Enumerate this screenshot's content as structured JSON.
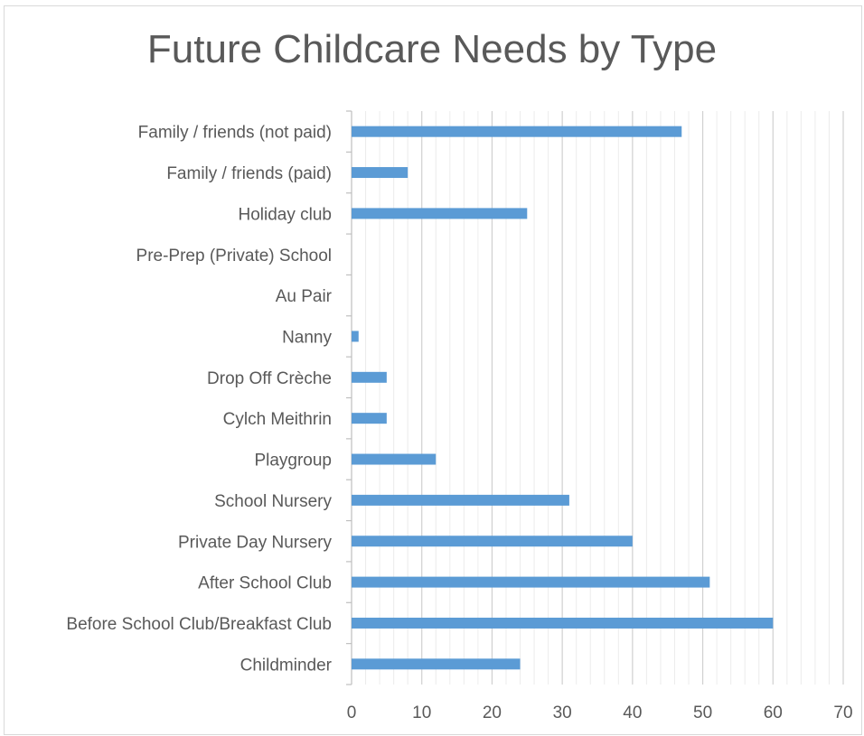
{
  "chart_data": {
    "type": "bar",
    "orientation": "horizontal",
    "title": "Future Childcare Needs by Type",
    "xlabel": "",
    "ylabel": "",
    "xlim": [
      0,
      70
    ],
    "major_ticks": [
      0,
      10,
      20,
      30,
      40,
      50,
      60,
      70
    ],
    "minor_tick_step": 2,
    "grid": true,
    "legend": "none",
    "bar_color": "#5b9bd5",
    "categories": [
      "Family / friends (not paid)",
      "Family / friends (paid)",
      "Holiday club",
      "Pre-Prep (Private) School",
      "Au Pair",
      "Nanny",
      "Drop Off Crèche",
      "Cylch Meithrin",
      "Playgroup",
      "School Nursery",
      "Private Day Nursery",
      "After School Club",
      "Before School Club/Breakfast Club",
      "Childminder"
    ],
    "values": [
      47,
      8,
      25,
      0,
      0,
      1,
      5,
      5,
      12,
      31,
      40,
      51,
      60,
      24
    ]
  }
}
